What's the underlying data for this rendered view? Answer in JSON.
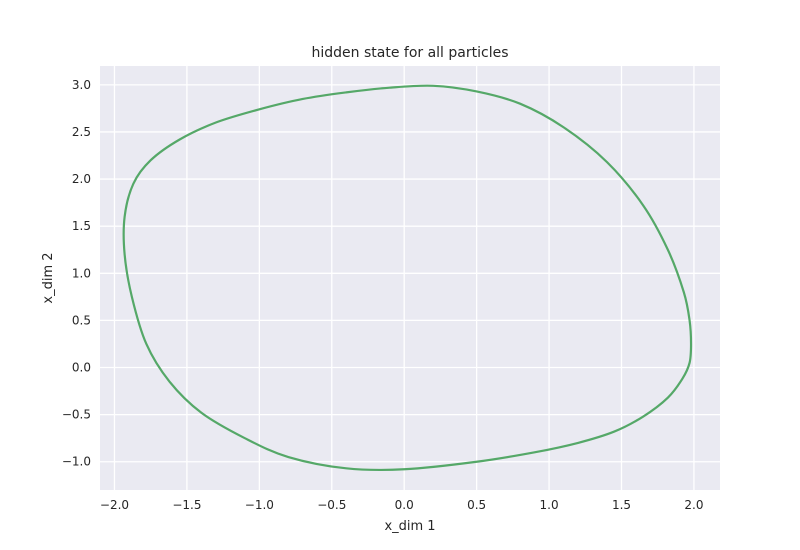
{
  "chart_data": {
    "type": "line",
    "title": "hidden state for all particles",
    "xlabel": "x_dim 1",
    "ylabel": "x_dim 2",
    "xlim": [
      -2.1,
      2.18
    ],
    "ylim": [
      -1.3,
      3.2
    ],
    "xticks": [
      -2.0,
      -1.5,
      -1.0,
      -0.5,
      0.0,
      0.5,
      1.0,
      1.5,
      2.0
    ],
    "xtick_labels": [
      "−2.0",
      "−1.5",
      "−1.0",
      "−0.5",
      "0.0",
      "0.5",
      "1.0",
      "1.5",
      "2.0"
    ],
    "yticks": [
      -1.0,
      -0.5,
      0.0,
      0.5,
      1.0,
      1.5,
      2.0,
      2.5,
      3.0
    ],
    "ytick_labels": [
      "−1.0",
      "−0.5",
      "0.0",
      "0.5",
      "1.0",
      "1.5",
      "2.0",
      "2.5",
      "3.0"
    ],
    "grid": true,
    "background": "#EAEAF2",
    "series": [
      {
        "color": "#55A868",
        "x": [
          0.2,
          0.5,
          0.8,
          1.1,
          1.4,
          1.65,
          1.82,
          1.93,
          1.97,
          1.98,
          1.97,
          1.92,
          1.82,
          1.65,
          1.45,
          1.2,
          0.9,
          0.5,
          0.0,
          -0.4,
          -0.8,
          -1.1,
          -1.4,
          -1.62,
          -1.78,
          -1.88,
          -1.93,
          -1.93,
          -1.87,
          -1.75,
          -1.55,
          -1.3,
          -1.0,
          -0.7,
          -0.4,
          -0.1,
          0.2
        ],
        "y": [
          2.99,
          2.93,
          2.8,
          2.55,
          2.18,
          1.72,
          1.25,
          0.8,
          0.5,
          0.25,
          0.05,
          -0.12,
          -0.32,
          -0.52,
          -0.68,
          -0.8,
          -0.9,
          -1.0,
          -1.08,
          -1.07,
          -0.95,
          -0.75,
          -0.48,
          -0.15,
          0.25,
          0.75,
          1.2,
          1.6,
          1.95,
          2.2,
          2.42,
          2.6,
          2.74,
          2.85,
          2.92,
          2.97,
          2.99
        ]
      }
    ]
  }
}
